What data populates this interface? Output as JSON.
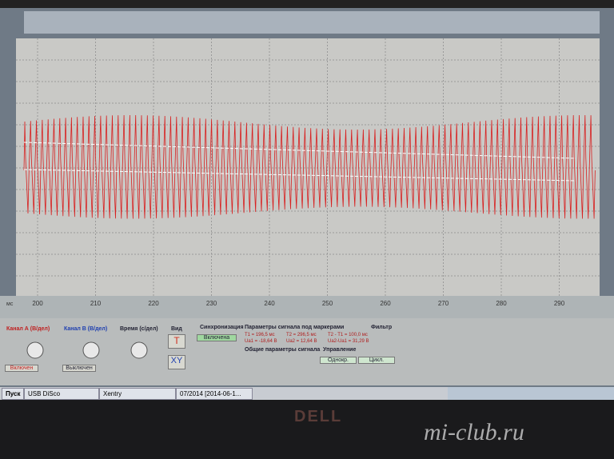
{
  "plot": {
    "x_unit": "мс",
    "x_ticks": [
      "200",
      "210",
      "220",
      "230",
      "240",
      "250",
      "260",
      "270",
      "280",
      "290"
    ]
  },
  "panel": {
    "channel_a": {
      "title": "Канал А (В/дел)",
      "button": "Включен"
    },
    "channel_b": {
      "title": "Канал В (В/дел)",
      "button": "Выключен"
    },
    "time": {
      "title": "Время (с/дел)"
    },
    "view": {
      "title": "Вид",
      "t_button": "T",
      "xy_button": "XY"
    },
    "sync": {
      "title": "Синхронизация",
      "button": "Включена"
    },
    "markers": {
      "title": "Параметры сигнала под маркерами",
      "rows": [
        "T1 = 196,5 мс",
        "T2 = 296,5 мс",
        "T2 - T1 = 100,0 мс",
        "Ua1 = -18,64 В",
        "Ua2 = 12,64 В",
        "Ua2-Ua1 = 31,29 В"
      ]
    },
    "general": {
      "title": "Общие параметры сигнала"
    },
    "control": {
      "title": "Управление",
      "single": "Однокр.",
      "cycle": "Цикл."
    },
    "filter": {
      "title": "Фильтр"
    }
  },
  "taskbar": {
    "start": "Пуск",
    "items": [
      "USB DiSco",
      "Xentry",
      "07/2014 [2014-06-1..."
    ]
  },
  "bezel": {
    "brand": "DELL",
    "watermark": "mi-club.ru"
  }
}
